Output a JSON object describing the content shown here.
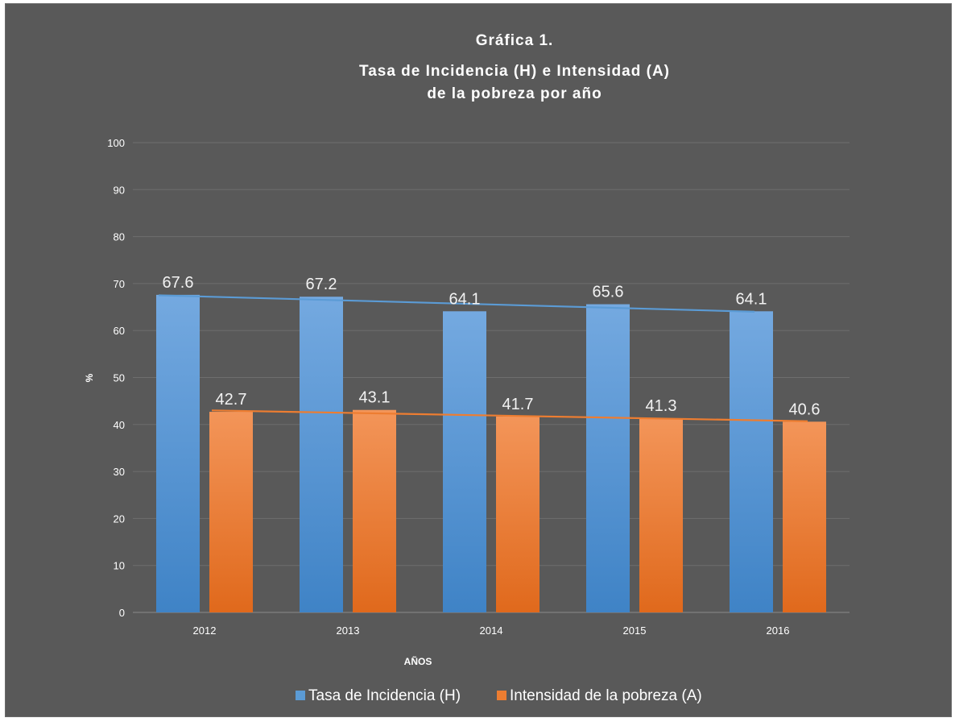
{
  "chart_data": {
    "type": "bar",
    "title": [
      "Gráfica 1.",
      "Tasa de Incidencia (H) e Intensidad (A)",
      "de la pobreza por año"
    ],
    "xlabel": "AÑOS",
    "ylabel": "%",
    "ylim": [
      0,
      100
    ],
    "yticks": [
      "0",
      "10",
      "20",
      "30",
      "40",
      "50",
      "60",
      "70",
      "80",
      "90",
      "100"
    ],
    "categories": [
      "2012",
      "2013",
      "2014",
      "2015",
      "2016"
    ],
    "series": [
      {
        "name": "Tasa de Incidencia (H)",
        "values": [
          67.6,
          67.2,
          64.1,
          65.6,
          64.1
        ],
        "labels": [
          "67.6",
          "67.2",
          "64.1",
          "65.6",
          "64.1"
        ],
        "color": "#5b9bd5",
        "trendline": [
          67.5,
          64.0
        ]
      },
      {
        "name": "Intensidad de la pobreza (A)",
        "values": [
          42.7,
          43.1,
          41.7,
          41.3,
          40.6
        ],
        "labels": [
          "42.7",
          "43.1",
          "41.7",
          "41.3",
          "40.6"
        ],
        "color": "#ed7d31",
        "trendline": [
          43.0,
          40.7
        ]
      }
    ],
    "grid": true,
    "legend_position": "bottom"
  }
}
